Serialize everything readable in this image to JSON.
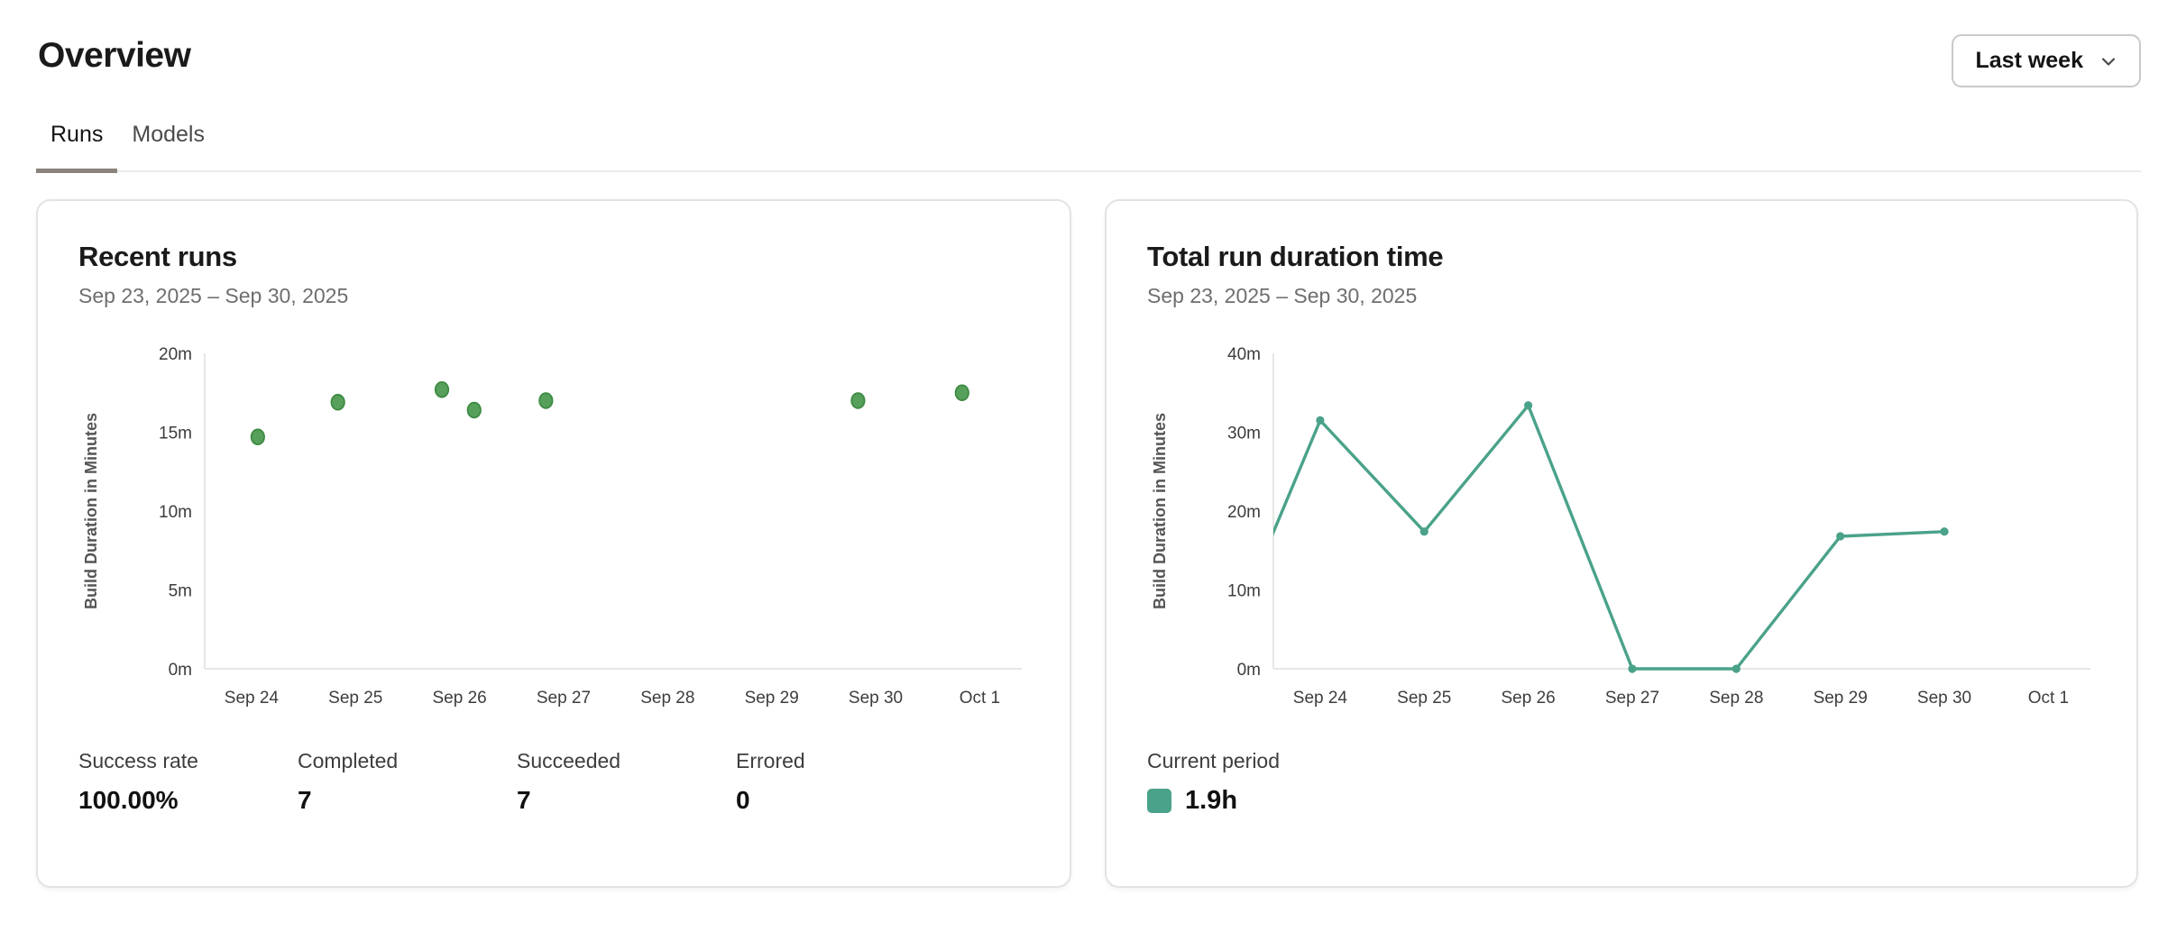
{
  "header": {
    "title": "Overview",
    "period_selector": {
      "value": "Last week"
    }
  },
  "tabs": [
    {
      "label": "Runs",
      "active": true
    },
    {
      "label": "Models",
      "active": false
    }
  ],
  "colors": {
    "scatter_dot_fill": "#57a05c",
    "scatter_dot_stroke": "#3d8b43",
    "line_teal": "#4aa28a",
    "axis_line": "#e7e7e7",
    "tab_indicator": "#8a837b",
    "card_border": "#e3e3e3"
  },
  "cards": {
    "recent_runs": {
      "title": "Recent runs",
      "date_range": "Sep 23, 2025 – Sep 30, 2025",
      "stats": [
        {
          "label": "Success rate",
          "value": "100.00%"
        },
        {
          "label": "Completed",
          "value": "7"
        },
        {
          "label": "Succeeded",
          "value": "7"
        },
        {
          "label": "Errored",
          "value": "0"
        }
      ]
    },
    "total_duration": {
      "title": "Total run duration time",
      "date_range": "Sep 23, 2025 – Sep 30, 2025",
      "legend_label": "Current period",
      "legend_value": "1.9h"
    }
  },
  "chart_data": [
    {
      "type": "scatter",
      "title": "Recent runs",
      "ylabel": "Build Duration in Minutes",
      "y_tick_suffix": "m",
      "y_ticks": [
        0,
        5,
        10,
        15,
        20
      ],
      "ylim": [
        0,
        20
      ],
      "x_tick_labels": [
        "Sep 24",
        "Sep 25",
        "Sep 26",
        "Sep 27",
        "Sep 28",
        "Sep 29",
        "Sep 30",
        "Oct 1"
      ],
      "xlim_days": [
        -0.45,
        7.3
      ],
      "grid": false,
      "points": [
        {
          "day": 0.06,
          "minutes": 14.7
        },
        {
          "day": 0.83,
          "minutes": 16.9
        },
        {
          "day": 1.83,
          "minutes": 17.7
        },
        {
          "day": 2.14,
          "minutes": 16.4
        },
        {
          "day": 2.83,
          "minutes": 17.0
        },
        {
          "day": 5.83,
          "minutes": 17.0
        },
        {
          "day": 6.83,
          "minutes": 17.5
        }
      ],
      "point_color": "#57a05c",
      "point_stroke": "#3d8b43"
    },
    {
      "type": "line",
      "title": "Total run duration time",
      "ylabel": "Build Duration in Minutes",
      "y_tick_suffix": "m",
      "y_ticks": [
        0,
        10,
        20,
        30,
        40
      ],
      "ylim": [
        0,
        40
      ],
      "x_tick_labels": [
        "Sep 24",
        "Sep 25",
        "Sep 26",
        "Sep 27",
        "Sep 28",
        "Sep 29",
        "Sep 30",
        "Oct 1"
      ],
      "xlim_days": [
        -0.45,
        7.3
      ],
      "grid": false,
      "legend_position": "bottom-left",
      "points": [
        {
          "day": -1,
          "minutes": 0
        },
        {
          "day": 0,
          "minutes": 31.5
        },
        {
          "day": 1,
          "minutes": 17.4
        },
        {
          "day": 2,
          "minutes": 33.4
        },
        {
          "day": 3,
          "minutes": 0
        },
        {
          "day": 4,
          "minutes": 0
        },
        {
          "day": 5,
          "minutes": 16.8
        },
        {
          "day": 6,
          "minutes": 17.4
        }
      ],
      "line_color": "#4aa28a"
    }
  ]
}
